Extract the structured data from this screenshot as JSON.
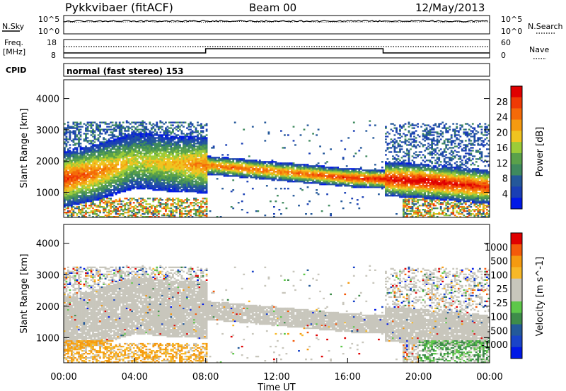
{
  "header": {
    "station": "Pykkvibaer (fitACF)",
    "beam": "Beam 00",
    "date": "12/May/2013"
  },
  "status_panels": {
    "nsky_label": "N.Sky",
    "nsearch_label": "N.Search",
    "nsky_ticks": [
      "10^5",
      "10^0"
    ],
    "nsearch_ticks": [
      "10^5",
      "10^0"
    ],
    "freq_label": "Freq.",
    "freq_unit": "[MHz]",
    "freq_ticks": [
      "18",
      "8"
    ],
    "nave_label": "Nave",
    "nave_ticks": [
      "60",
      "0"
    ],
    "cpid_label": "CPID",
    "cpid_text": "normal (fast stereo) 153"
  },
  "colors": {
    "scale": [
      "#0018e6",
      "#1a3fb5",
      "#24589a",
      "#3f8a5e",
      "#5aa14a",
      "#9ccc38",
      "#f0c420",
      "#f59a10",
      "#f46a08",
      "#ef3a05",
      "#e00000"
    ],
    "velocity_scale": [
      "#e00000",
      "#f45a0a",
      "#f59a10",
      "#f7b828",
      "#c8c6bc",
      "#c8c6bc",
      "#5ec84a",
      "#3e8c4a",
      "#245a9a",
      "#1a44c8",
      "#0018e6"
    ],
    "ground_scatter": "#c8c6bc"
  },
  "chart_data": [
    {
      "type": "heatmap",
      "parameter": "Power",
      "ylabel": "Slant Range [km]",
      "yticks": [
        1000,
        2000,
        3000,
        4000
      ],
      "ylim": [
        200,
        4600
      ],
      "xlim": [
        0,
        24
      ],
      "colorbar_label": "Power [dB]",
      "colorbar_ticks": [
        "28",
        "24",
        "20",
        "16",
        "12",
        "8",
        "4"
      ],
      "colorbar_range": [
        0,
        32
      ],
      "echo_band": {
        "hours": [
          0,
          2,
          4,
          6,
          8,
          10,
          12,
          14,
          16,
          18,
          20,
          22,
          24
        ],
        "center_km": [
          1400,
          1650,
          2000,
          1900,
          1850,
          1750,
          1650,
          1550,
          1450,
          1400,
          1350,
          1250,
          1150
        ],
        "peak_power_db": [
          26,
          22,
          16,
          18,
          22,
          24,
          22,
          24,
          26,
          28,
          30,
          28,
          26
        ]
      }
    },
    {
      "type": "heatmap",
      "parameter": "Velocity",
      "ylabel": "Slant Range [km]",
      "yticks": [
        1000,
        2000,
        3000,
        4000
      ],
      "ylim": [
        200,
        4600
      ],
      "xlim": [
        0,
        24
      ],
      "xlabel": "Time UT",
      "xtick_labels": [
        "00:00",
        "04:00",
        "08:00",
        "12:00",
        "16:00",
        "20:00",
        "00:00"
      ],
      "colorbar_label": "Velocity [m s^-1]",
      "colorbar_ticks": [
        "1000",
        "500",
        "100",
        "25",
        "-25",
        "-100",
        "-500",
        "-1000"
      ],
      "ground_scatter": "mostly grey"
    }
  ]
}
